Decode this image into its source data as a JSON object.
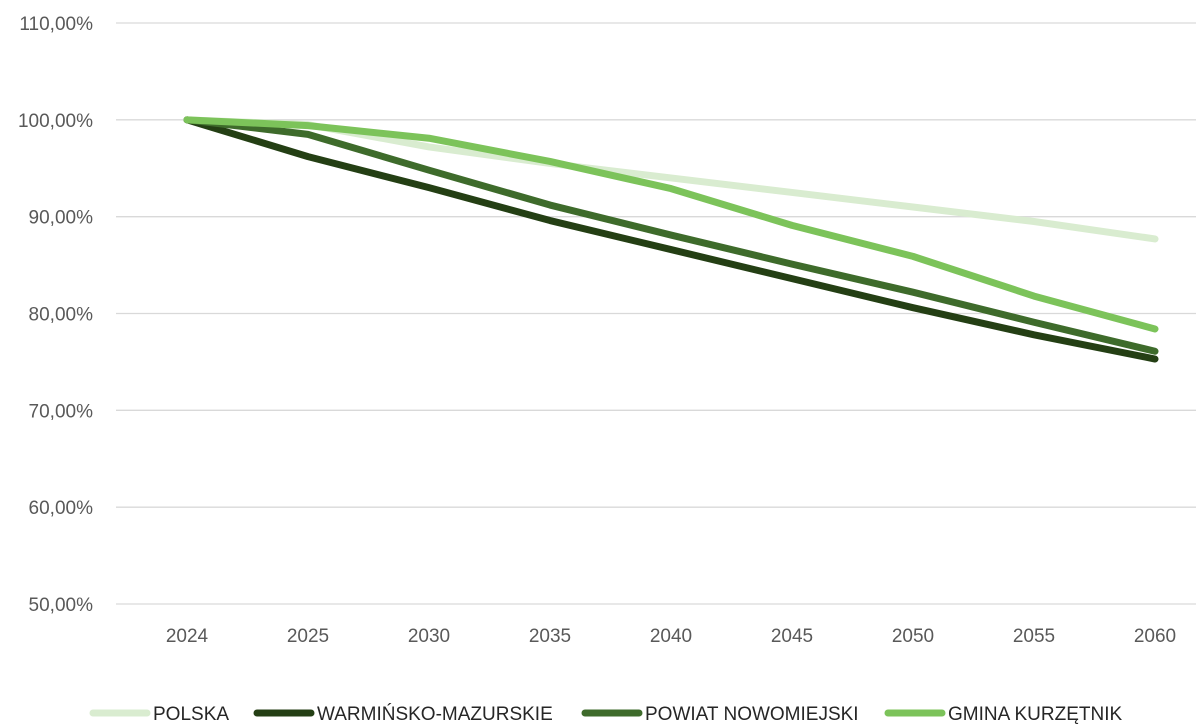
{
  "chart_data": {
    "type": "line",
    "categories": [
      "2024",
      "2025",
      "2030",
      "2035",
      "2040",
      "2045",
      "2050",
      "2055",
      "2060"
    ],
    "ylim": [
      0.5,
      1.1
    ],
    "y_ticks": [
      "50,00%",
      "60,00%",
      "70,00%",
      "80,00%",
      "90,00%",
      "100,00%",
      "110,00%"
    ],
    "y_tick_values": [
      0.5,
      0.6,
      0.7,
      0.8,
      0.9,
      1.0,
      1.1
    ],
    "grid": true,
    "legend_position": "bottom",
    "series": [
      {
        "name": "POLSKA",
        "color": "#d9ecd0",
        "values": [
          1.0,
          0.995,
          0.972,
          0.955,
          0.94,
          0.925,
          0.91,
          0.895,
          0.877
        ]
      },
      {
        "name": "WARMIŃSKO-MAZURSKIE",
        "color": "#243f14",
        "values": [
          1.0,
          0.962,
          0.93,
          0.896,
          0.866,
          0.836,
          0.806,
          0.778,
          0.753
        ]
      },
      {
        "name": "POWIAT NOWOMIEJSKI",
        "color": "#3e6b2b",
        "values": [
          1.0,
          0.985,
          0.948,
          0.912,
          0.881,
          0.851,
          0.822,
          0.791,
          0.761
        ]
      },
      {
        "name": "GMINA KURZĘTNIK",
        "color": "#7cc35a",
        "values": [
          1.0,
          0.994,
          0.981,
          0.957,
          0.929,
          0.891,
          0.859,
          0.818,
          0.784
        ]
      }
    ]
  }
}
